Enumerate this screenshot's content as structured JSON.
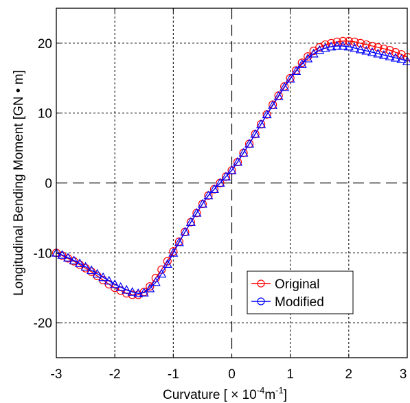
{
  "chart_data": {
    "type": "line",
    "title": "",
    "xlabel_main": "Curvature [ × 10",
    "xlabel_exp1": "-4",
    "xlabel_mid": "m",
    "xlabel_exp2": "-1",
    "xlabel_end": "]",
    "ylabel": "Longitudinal Bending Moment [GN • m]",
    "xlim": [
      -3,
      3
    ],
    "ylim": [
      -25,
      25
    ],
    "xticks": [
      -3,
      -2,
      -1,
      0,
      1,
      2,
      3
    ],
    "yticks": [
      -20,
      -10,
      0,
      10,
      20
    ],
    "xtick_labels": [
      "-3",
      "-2",
      "-1",
      "0",
      "1",
      "2",
      "3"
    ],
    "ytick_labels": [
      "-20",
      "-10",
      "0",
      "10",
      "20"
    ],
    "grid": true,
    "legend_position": "lower-right",
    "series": [
      {
        "name": "Original",
        "color": "#ff0000",
        "marker": "circle",
        "x": [
          -3.0,
          -2.9,
          -2.8,
          -2.7,
          -2.6,
          -2.5,
          -2.4,
          -2.3,
          -2.2,
          -2.1,
          -2.0,
          -1.9,
          -1.8,
          -1.7,
          -1.6,
          -1.5,
          -1.4,
          -1.3,
          -1.2,
          -1.1,
          -1.0,
          -0.9,
          -0.8,
          -0.7,
          -0.6,
          -0.5,
          -0.4,
          -0.3,
          -0.2,
          -0.1,
          0.0,
          0.1,
          0.2,
          0.3,
          0.4,
          0.5,
          0.6,
          0.7,
          0.8,
          0.9,
          1.0,
          1.1,
          1.2,
          1.3,
          1.4,
          1.5,
          1.6,
          1.7,
          1.8,
          1.9,
          2.0,
          2.1,
          2.2,
          2.3,
          2.4,
          2.5,
          2.6,
          2.7,
          2.8,
          2.9,
          3.0
        ],
        "y": [
          -10.0,
          -10.4,
          -10.8,
          -11.2,
          -11.7,
          -12.2,
          -12.7,
          -13.3,
          -13.9,
          -14.5,
          -15.0,
          -15.4,
          -15.8,
          -16.0,
          -16.0,
          -15.6,
          -14.8,
          -13.6,
          -12.4,
          -11.2,
          -9.8,
          -8.4,
          -7.0,
          -5.6,
          -4.3,
          -3.0,
          -1.8,
          -0.9,
          0.0,
          0.9,
          1.8,
          3.0,
          4.3,
          5.6,
          7.0,
          8.4,
          9.8,
          11.2,
          12.5,
          13.8,
          15.0,
          16.1,
          17.2,
          18.1,
          18.9,
          19.4,
          19.8,
          20.0,
          20.2,
          20.3,
          20.3,
          20.2,
          20.0,
          19.8,
          19.6,
          19.4,
          19.2,
          19.0,
          18.7,
          18.4,
          18.0
        ]
      },
      {
        "name": "Modified",
        "color": "#0000ff",
        "marker": "triangle",
        "x": [
          -3.0,
          -2.9,
          -2.8,
          -2.7,
          -2.6,
          -2.5,
          -2.4,
          -2.3,
          -2.2,
          -2.1,
          -2.0,
          -1.9,
          -1.8,
          -1.7,
          -1.6,
          -1.5,
          -1.4,
          -1.3,
          -1.2,
          -1.1,
          -1.0,
          -0.9,
          -0.8,
          -0.7,
          -0.6,
          -0.5,
          -0.4,
          -0.3,
          -0.2,
          -0.1,
          0.0,
          0.1,
          0.2,
          0.3,
          0.4,
          0.5,
          0.6,
          0.7,
          0.8,
          0.9,
          1.0,
          1.1,
          1.2,
          1.3,
          1.4,
          1.5,
          1.6,
          1.7,
          1.8,
          1.9,
          2.0,
          2.1,
          2.2,
          2.3,
          2.4,
          2.5,
          2.6,
          2.7,
          2.8,
          2.9,
          3.0
        ],
        "y": [
          -10.0,
          -10.3,
          -10.7,
          -11.1,
          -11.5,
          -12.0,
          -12.5,
          -13.0,
          -13.5,
          -14.0,
          -14.5,
          -14.9,
          -15.3,
          -15.6,
          -15.8,
          -15.7,
          -15.1,
          -14.2,
          -13.0,
          -11.6,
          -10.0,
          -8.5,
          -7.0,
          -5.6,
          -4.3,
          -3.0,
          -1.8,
          -0.9,
          0.0,
          0.9,
          1.8,
          3.0,
          4.3,
          5.6,
          7.0,
          8.4,
          9.8,
          11.1,
          12.4,
          13.7,
          14.9,
          16.0,
          17.0,
          17.8,
          18.5,
          19.0,
          19.3,
          19.5,
          19.6,
          19.6,
          19.5,
          19.3,
          19.1,
          18.9,
          18.7,
          18.5,
          18.3,
          18.1,
          17.9,
          17.7,
          17.4
        ]
      }
    ]
  }
}
